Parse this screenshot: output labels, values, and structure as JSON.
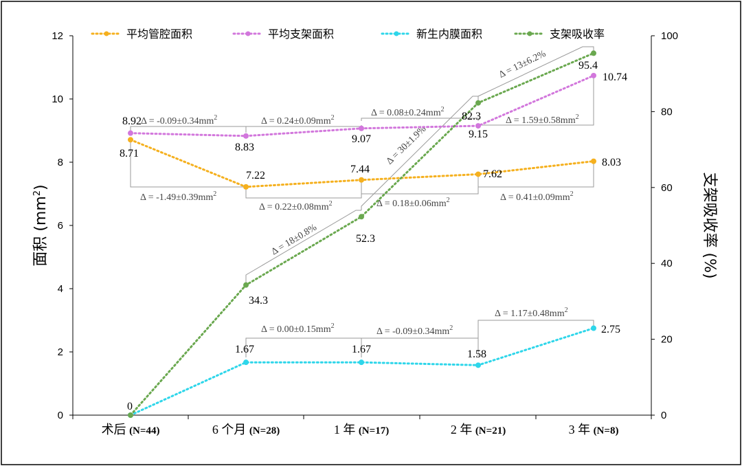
{
  "chart_data": {
    "type": "line",
    "categories": [
      "术后",
      "6 个月",
      "1 年",
      "2 年",
      "3 年"
    ],
    "category_n": [
      "(N=44)",
      "(N=28)",
      "(N=17)",
      "(N=21)",
      "(N=8)"
    ],
    "y_left": {
      "label_main": "面积",
      "label_unit": " (mm",
      "label_sup": "2",
      "label_close": ")",
      "min": 0,
      "max": 12,
      "ticks": [
        0,
        2,
        4,
        6,
        8,
        10,
        12
      ]
    },
    "y_right": {
      "label": "支架吸收率 (%)",
      "min": 0,
      "max": 100,
      "ticks": [
        0,
        20,
        40,
        60,
        80,
        100
      ]
    },
    "series": [
      {
        "name": "平均管腔面积",
        "color": "#f5b01e",
        "axis": "left",
        "values": [
          8.71,
          7.22,
          7.44,
          7.62,
          8.03
        ],
        "labels": [
          "8.71",
          "7.22",
          "7.44",
          "7.62",
          "8.03"
        ]
      },
      {
        "name": "平均支架面积",
        "color": "#d277dc",
        "axis": "left",
        "values": [
          8.92,
          8.83,
          9.07,
          9.15,
          10.74
        ],
        "labels": [
          "8.92",
          "8.83",
          "9.07",
          "9.15",
          "10.74"
        ]
      },
      {
        "name": "新生内膜面积",
        "color": "#2ed6ea",
        "axis": "left",
        "values": [
          0,
          1.67,
          1.67,
          1.58,
          2.75
        ],
        "labels": [
          "",
          "1.67",
          "1.67",
          "1.58",
          "2.75"
        ]
      },
      {
        "name": "支架吸收率",
        "color": "#6aa84f",
        "axis": "right",
        "values": [
          0,
          34.3,
          52.3,
          82.3,
          95.4
        ],
        "labels": [
          "0",
          "34.3",
          "52.3",
          "82.3",
          "95.4"
        ]
      }
    ],
    "annotations": {
      "stent": [
        {
          "text": "Δ = -0.09±0.34mm",
          "sup": "2"
        },
        {
          "text": "Δ = 0.24±0.09mm",
          "sup": "2"
        },
        {
          "text": "Δ = 0.08±0.24mm",
          "sup": "2"
        },
        {
          "text": "Δ = 1.59±0.58mm",
          "sup": "2"
        }
      ],
      "lumen": [
        {
          "text": "Δ = -1.49±0.39mm",
          "sup": "2"
        },
        {
          "text": "Δ = 0.22±0.08mm",
          "sup": "2"
        },
        {
          "text": "Δ = 0.18±0.06mm",
          "sup": "2"
        },
        {
          "text": "Δ = 0.41±0.09mm",
          "sup": "2"
        }
      ],
      "neointima": [
        {
          "text": "Δ = 0.00±0.15mm",
          "sup": "2"
        },
        {
          "text": "Δ = -0.09±0.34mm",
          "sup": "2"
        },
        {
          "text": "Δ = 1.17±0.48mm",
          "sup": "2"
        }
      ],
      "absorption": [
        {
          "text": "Δ = 18±0.8%"
        },
        {
          "text": "Δ = 30±1.9%"
        },
        {
          "text": "Δ = 13±6.2%"
        }
      ]
    },
    "legend_position": "top",
    "grid": false
  }
}
